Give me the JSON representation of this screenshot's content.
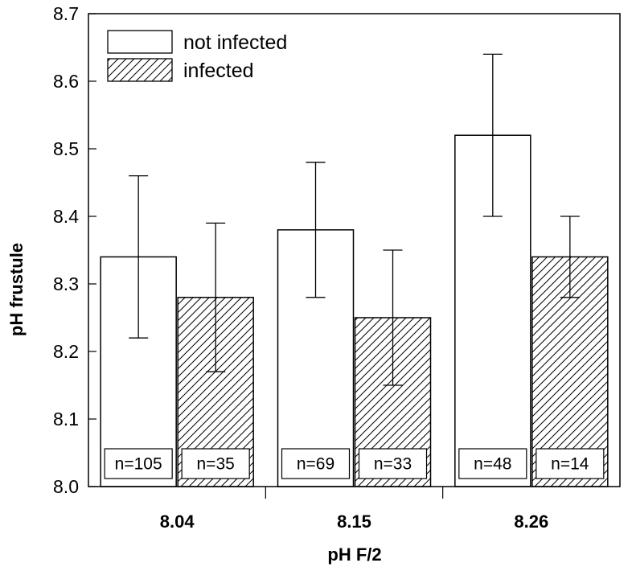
{
  "chart_data": {
    "type": "bar",
    "xlabel": "pH F/2",
    "ylabel": "pH frustule",
    "ylim": [
      8.0,
      8.7
    ],
    "yticks": [
      "8.0",
      "8.1",
      "8.2",
      "8.3",
      "8.4",
      "8.5",
      "8.6",
      "8.7"
    ],
    "categories": [
      "8.04",
      "8.15",
      "8.26"
    ],
    "legend_position": "top-left",
    "series": [
      {
        "name": "not infected",
        "pattern": "solid",
        "values": [
          8.34,
          8.38,
          8.52
        ],
        "err_low": [
          8.22,
          8.28,
          8.4
        ],
        "err_high": [
          8.46,
          8.48,
          8.64
        ],
        "n_labels": [
          "n=105",
          "n=69",
          "n=48"
        ]
      },
      {
        "name": "infected",
        "pattern": "hatched",
        "values": [
          8.28,
          8.25,
          8.34
        ],
        "err_low": [
          8.17,
          8.15,
          8.28
        ],
        "err_high": [
          8.39,
          8.35,
          8.4
        ],
        "n_labels": [
          "n=35",
          "n=33",
          "n=14"
        ]
      }
    ],
    "grid": false,
    "colors": {
      "bar_fill": "#ffffff",
      "line": "#000000"
    }
  }
}
